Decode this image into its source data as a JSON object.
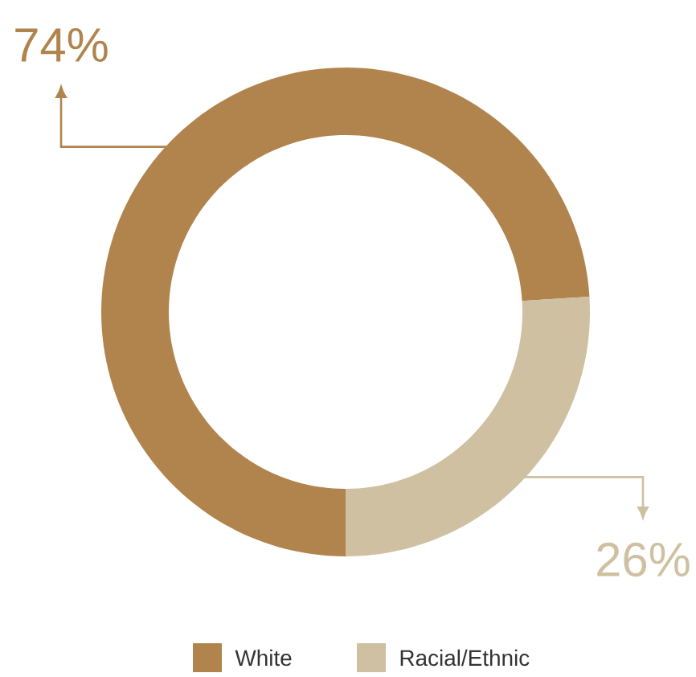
{
  "chart_data": {
    "type": "donut",
    "categories": [
      "White",
      "Racial/Ethnic"
    ],
    "values": [
      74,
      26
    ],
    "colors": [
      "#b0844c",
      "#cfc0a2"
    ],
    "value_labels": [
      "74%",
      "26%"
    ],
    "legend": "bottom"
  }
}
